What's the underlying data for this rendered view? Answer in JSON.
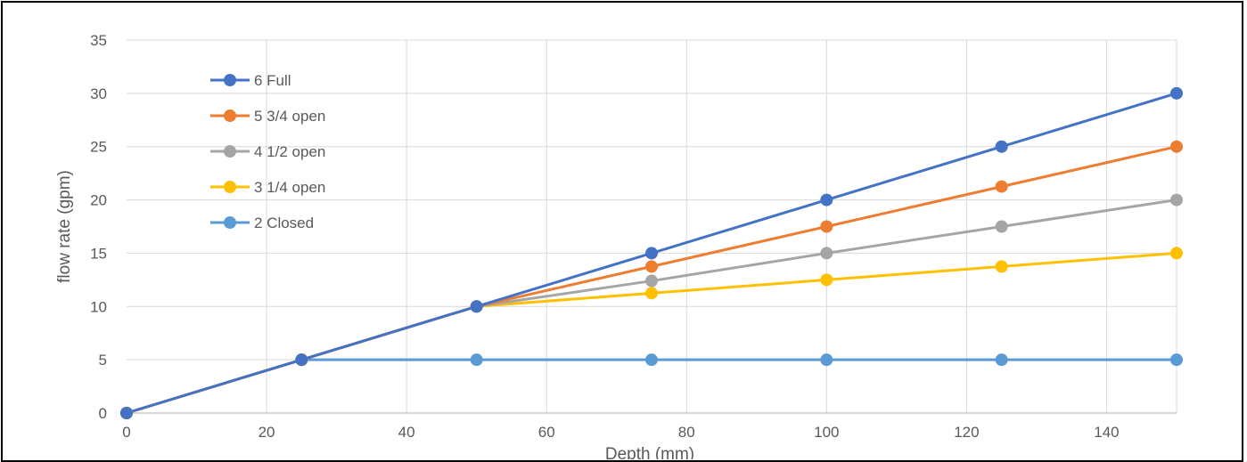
{
  "chart_data": {
    "type": "line",
    "title": "",
    "xlabel": "Depth (mm)",
    "ylabel": "flow rate (gpm)",
    "xlim": [
      0,
      150
    ],
    "ylim": [
      0,
      35
    ],
    "x_ticks": [
      0,
      20,
      40,
      60,
      80,
      100,
      120,
      140
    ],
    "y_ticks": [
      0,
      5,
      10,
      15,
      20,
      25,
      30,
      35
    ],
    "grid": true,
    "legend": "top-left",
    "series": [
      {
        "name": "6 Full",
        "color": "#4472C4",
        "x": [
          0,
          25,
          50,
          75,
          100,
          125,
          150
        ],
        "y": [
          0,
          5,
          10,
          15,
          20,
          25,
          30
        ]
      },
      {
        "name": "5 3/4 open",
        "color": "#ED7D31",
        "x": [
          0,
          25,
          50,
          75,
          100,
          125,
          150
        ],
        "y": [
          0,
          5,
          10,
          13.75,
          17.5,
          21.25,
          25
        ]
      },
      {
        "name": "4 1/2 open",
        "color": "#A5A5A5",
        "x": [
          0,
          25,
          50,
          75,
          100,
          125,
          150
        ],
        "y": [
          0,
          5,
          10,
          12.4,
          15,
          17.5,
          20
        ]
      },
      {
        "name": "3 1/4 open",
        "color": "#FFC000",
        "x": [
          0,
          25,
          50,
          75,
          100,
          125,
          150
        ],
        "y": [
          0,
          5,
          10,
          11.25,
          12.5,
          13.75,
          15
        ]
      },
      {
        "name": "2 Closed",
        "color": "#5B9BD5",
        "x": [
          0,
          25,
          50,
          75,
          100,
          125,
          150
        ],
        "y": [
          0,
          5,
          5,
          5,
          5,
          5,
          5
        ]
      }
    ]
  }
}
